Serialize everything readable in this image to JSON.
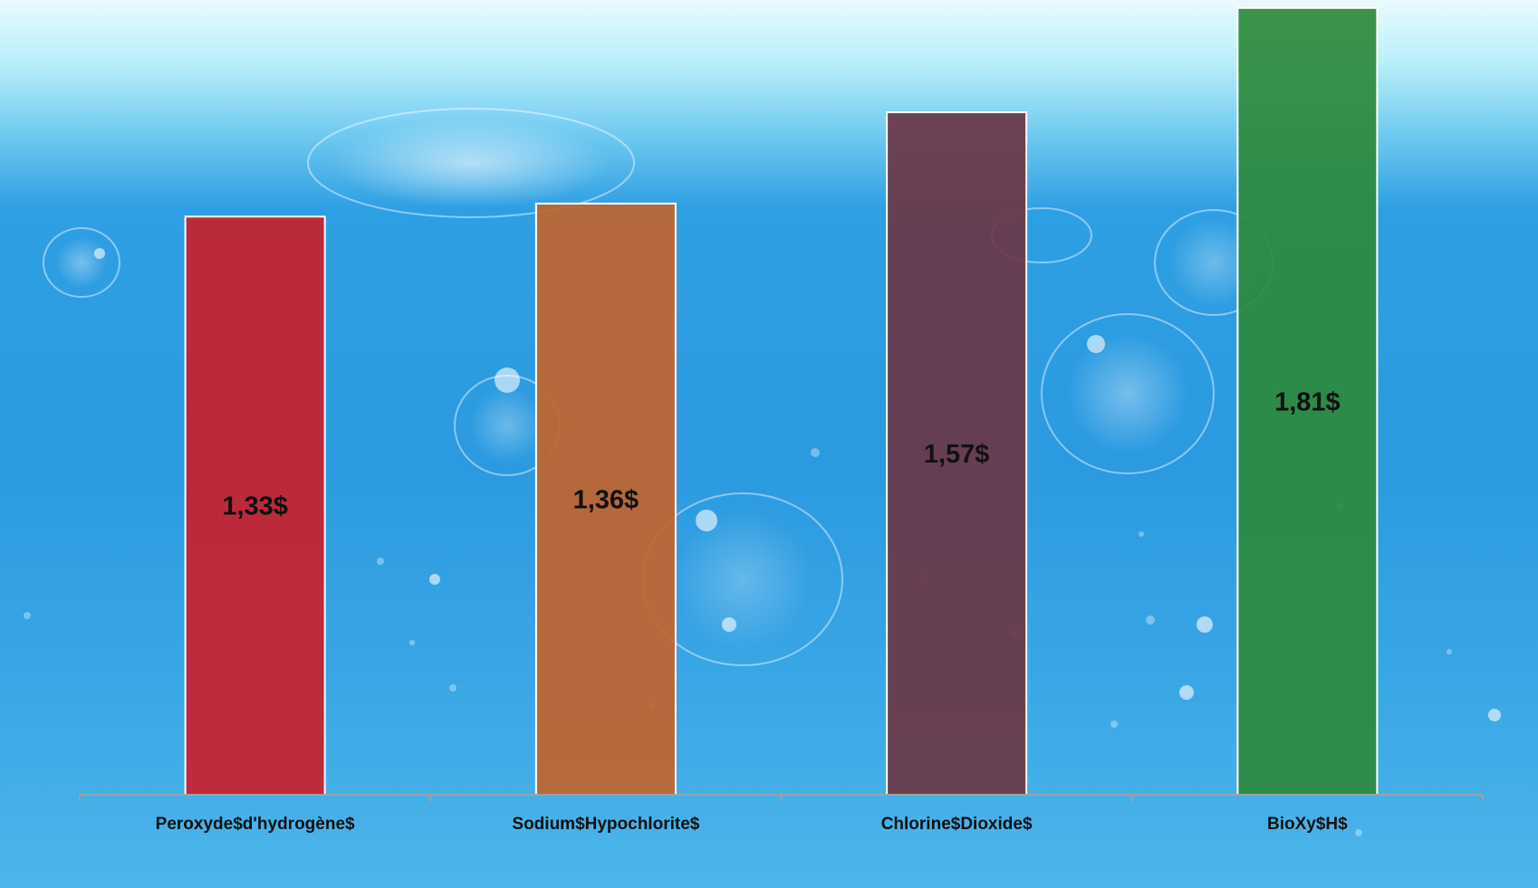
{
  "chart_data": {
    "type": "bar",
    "categories": [
      "Peroxyde$d'hydrogène$",
      "Sodium$Hypochlorite$",
      "Chlorine$Dioxide$",
      "BioXy$H$"
    ],
    "values": [
      1.33,
      1.36,
      1.57,
      1.81
    ],
    "value_labels": [
      "1,33$",
      "1,36$",
      "1,57$",
      "1,81$"
    ],
    "colors": [
      "#c8202c",
      "#c0642e",
      "#6b3646",
      "#2d8a3c"
    ],
    "ylim": [
      0,
      1.82
    ],
    "grid": false,
    "legend": "none"
  }
}
